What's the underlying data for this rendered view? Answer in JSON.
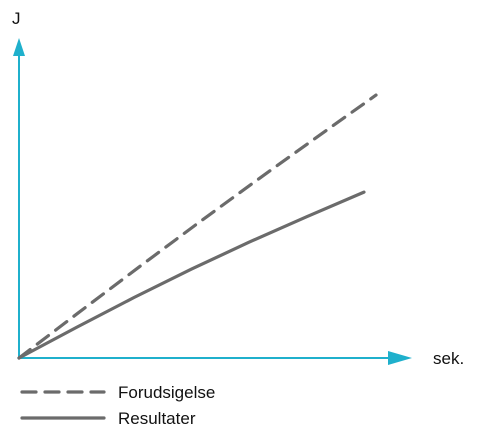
{
  "chart_data": {
    "type": "line",
    "title": "",
    "xlabel": "sek.",
    "ylabel": "J",
    "x": [
      0,
      1
    ],
    "xlim": [
      0,
      1
    ],
    "ylim": [
      0,
      1
    ],
    "grid": false,
    "legend_placement": "bottom-left",
    "series": [
      {
        "name": "Forudsigelse",
        "style": "dashed",
        "color": "#6b6b6b",
        "values": [
          0,
          0.84
        ]
      },
      {
        "name": "Resultater",
        "style": "solid",
        "color": "#6b6b6b",
        "values": [
          0,
          0.53
        ]
      }
    ]
  },
  "colors": {
    "axis": "#1fb0cc",
    "series": "#6b6b6b"
  }
}
